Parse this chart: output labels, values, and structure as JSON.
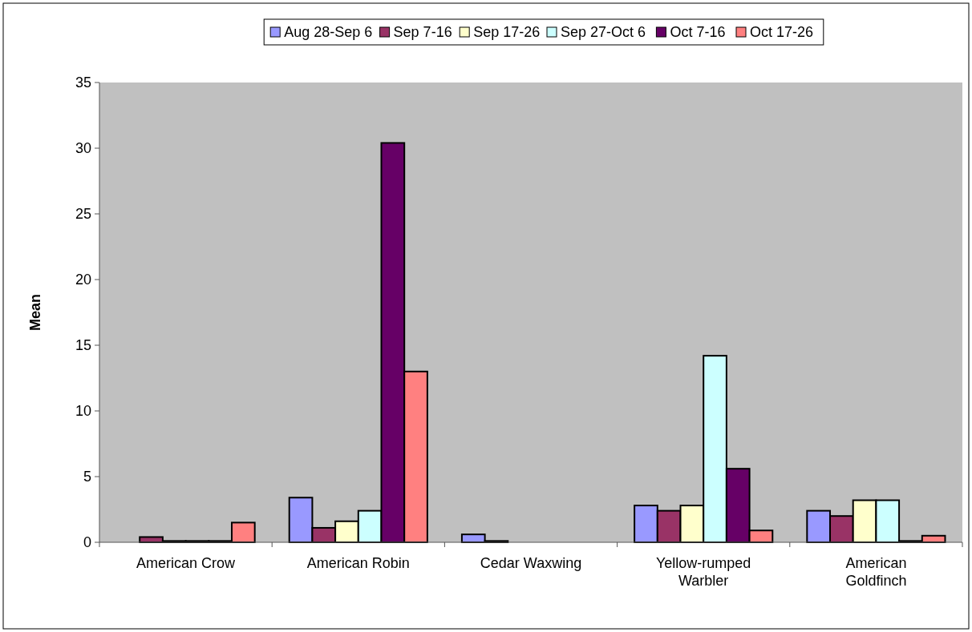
{
  "chart_data": {
    "type": "bar",
    "ylabel": "Mean",
    "categories": [
      "American Crow",
      "American Robin",
      "Cedar Waxwing",
      "Yellow-rumped Warbler",
      "American Goldfinch"
    ],
    "series": [
      {
        "name": "Aug 28-Sep 6",
        "color": "#9999ff",
        "values": [
          0,
          3.4,
          0.6,
          2.8,
          2.4
        ]
      },
      {
        "name": "Sep 7-16",
        "color": "#993366",
        "values": [
          0.4,
          1.1,
          0.1,
          2.4,
          2.0
        ]
      },
      {
        "name": "Sep 17-26",
        "color": "#ffffcc",
        "values": [
          0.1,
          1.6,
          0,
          2.8,
          3.2
        ]
      },
      {
        "name": "Sep 27-Oct 6",
        "color": "#ccffff",
        "values": [
          0.1,
          2.4,
          0,
          14.2,
          3.2
        ]
      },
      {
        "name": "Oct 7-16",
        "color": "#660066",
        "values": [
          0.1,
          30.4,
          0,
          5.6,
          0.1
        ]
      },
      {
        "name": "Oct 17-26",
        "color": "#ff8080",
        "values": [
          1.5,
          13.0,
          0,
          0.9,
          0.5
        ]
      }
    ],
    "ylim": [
      0,
      35
    ],
    "yticks": [
      0,
      5,
      10,
      15,
      20,
      25,
      30,
      35
    ],
    "grid": false,
    "legend": "top"
  }
}
